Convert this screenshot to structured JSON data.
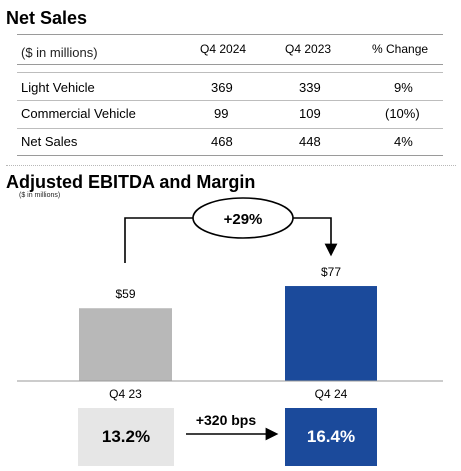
{
  "net_sales": {
    "title": "Net Sales",
    "unit_note": "($ in millions)",
    "columns": [
      "Q4 2024",
      "Q4 2023",
      "% Change"
    ],
    "rows": [
      {
        "label": "Light Vehicle",
        "q4_2024": "369",
        "q4_2023": "339",
        "change": "9%"
      },
      {
        "label": "Commercial Vehicle",
        "q4_2024": "99",
        "q4_2023": "109",
        "change": "(10%)"
      },
      {
        "label": "Net Sales",
        "q4_2024": "468",
        "q4_2023": "448",
        "change": "4%"
      }
    ]
  },
  "ebitda": {
    "title": "Adjusted EBITDA and Margin",
    "unit_note": "($ in millions)",
    "growth_label": "+29%",
    "margin_change_label": "+320 bps",
    "margins": [
      {
        "value": "13.2%",
        "bg": "#e6e6e6",
        "color": "#000000"
      },
      {
        "value": "16.4%",
        "bg": "#1b4a9b",
        "color": "#ffffff"
      }
    ]
  },
  "chart_data": {
    "type": "bar",
    "categories": [
      "Q4 23",
      "Q4 24"
    ],
    "values": [
      59,
      77
    ],
    "data_labels": [
      "$59",
      "$77"
    ],
    "colors": [
      "#b8b8b8",
      "#1b4a9b"
    ],
    "ylim": [
      0,
      90
    ]
  }
}
